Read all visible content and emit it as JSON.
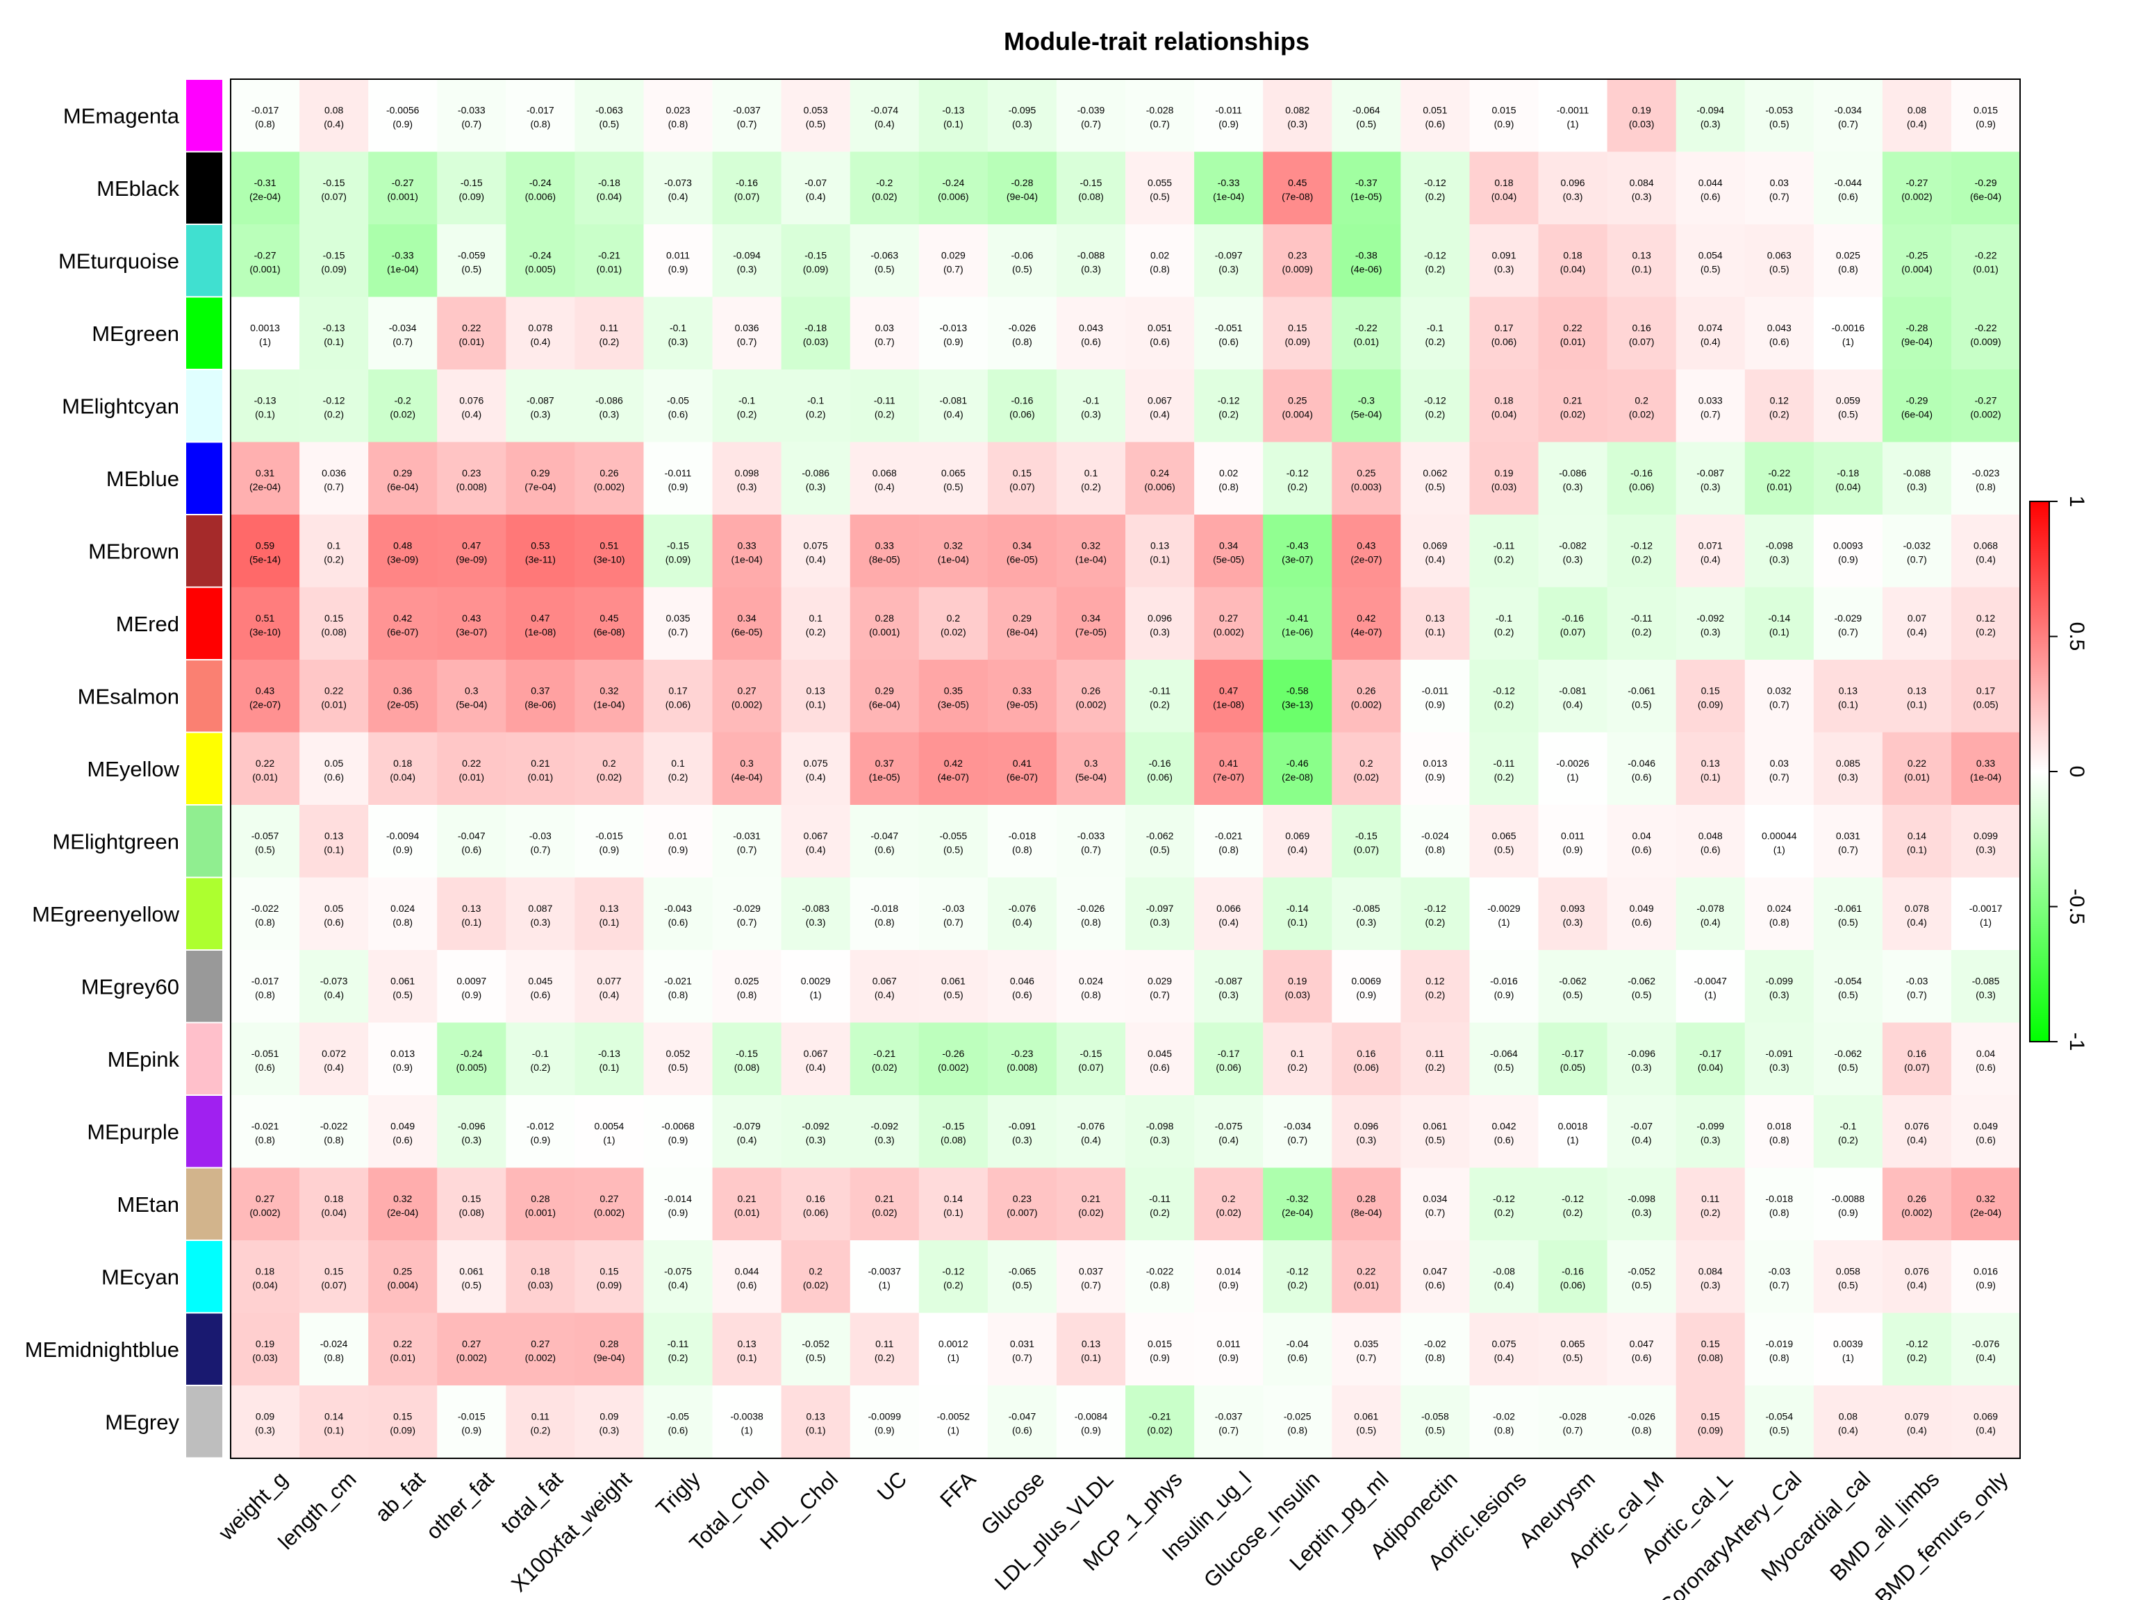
{
  "chart_data": {
    "type": "heatmap",
    "title": "Module-trait relationships",
    "color_scale": {
      "low": "#00ff00",
      "mid": "#ffffff",
      "high": "#ff0000",
      "ticks": [
        "1",
        "0.5",
        "0",
        "-0.5",
        "-1"
      ],
      "tick_values": [
        1,
        0.5,
        0,
        -0.5,
        -1
      ],
      "range": [
        -1,
        1
      ]
    },
    "rows": [
      "MEmagenta",
      "MEblack",
      "MEturquoise",
      "MEgreen",
      "MElightcyan",
      "MEblue",
      "MEbrown",
      "MEred",
      "MEsalmon",
      "MEyellow",
      "MElightgreen",
      "MEgreenyellow",
      "MEgrey60",
      "MEpink",
      "MEpurple",
      "MEtan",
      "MEcyan",
      "MEmidnightblue",
      "MEgrey"
    ],
    "row_colors": [
      "#ff00ff",
      "#000000",
      "#40e0d0",
      "#00ff00",
      "#e0ffff",
      "#0000ff",
      "#a52a2a",
      "#ff0000",
      "#fa8072",
      "#ffff00",
      "#90ee90",
      "#adff2f",
      "#999999",
      "#ffc0cb",
      "#a020f0",
      "#d2b48c",
      "#00ffff",
      "#191970",
      "#bebebe"
    ],
    "columns": [
      "weight_g",
      "length_cm",
      "ab_fat",
      "other_fat",
      "total_fat",
      "X100xfat_weight",
      "Trigly",
      "Total_Chol",
      "HDL_Chol",
      "UC",
      "FFA",
      "Glucose",
      "LDL_plus_VLDL",
      "MCP_1_phys",
      "Insulin_ug_l",
      "Glucose_Insulin",
      "Leptin_pg_ml",
      "Adiponectin",
      "Aortic.lesions",
      "Aneurysm",
      "Aortic_cal_M",
      "Aortic_cal_L",
      "CoronaryArtery_Cal",
      "Myocardial_cal",
      "BMD_all_limbs",
      "BMD_femurs_only"
    ],
    "values": [
      [
        "-0.017",
        "0.08",
        "-0.0056",
        "-0.033",
        "-0.017",
        "-0.063",
        "0.023",
        "-0.037",
        "0.053",
        "-0.074",
        "-0.13",
        "-0.095",
        "-0.039",
        "-0.028",
        "-0.011",
        "0.082",
        "-0.064",
        "0.051",
        "0.015",
        "-0.0011",
        "0.19",
        "-0.094",
        "-0.053",
        "-0.034",
        "0.08",
        "0.015"
      ],
      [
        "-0.31",
        "-0.15",
        "-0.27",
        "-0.15",
        "-0.24",
        "-0.18",
        "-0.073",
        "-0.16",
        "-0.07",
        "-0.2",
        "-0.24",
        "-0.28",
        "-0.15",
        "0.055",
        "-0.33",
        "0.45",
        "-0.37",
        "-0.12",
        "0.18",
        "0.096",
        "0.084",
        "0.044",
        "0.03",
        "-0.044",
        "-0.27",
        "-0.29"
      ],
      [
        "-0.27",
        "-0.15",
        "-0.33",
        "-0.059",
        "-0.24",
        "-0.21",
        "0.011",
        "-0.094",
        "-0.15",
        "-0.063",
        "0.029",
        "-0.06",
        "-0.088",
        "0.02",
        "-0.097",
        "0.23",
        "-0.38",
        "-0.12",
        "0.091",
        "0.18",
        "0.13",
        "0.054",
        "0.063",
        "0.025",
        "-0.25",
        "-0.22"
      ],
      [
        "0.0013",
        "-0.13",
        "-0.034",
        "0.22",
        "0.078",
        "0.11",
        "-0.1",
        "0.036",
        "-0.18",
        "0.03",
        "-0.013",
        "-0.026",
        "0.043",
        "0.051",
        "-0.051",
        "0.15",
        "-0.22",
        "-0.1",
        "0.17",
        "0.22",
        "0.16",
        "0.074",
        "0.043",
        "-0.0016",
        "-0.28",
        "-0.22"
      ],
      [
        "-0.13",
        "-0.12",
        "-0.2",
        "0.076",
        "-0.087",
        "-0.086",
        "-0.05",
        "-0.1",
        "-0.1",
        "-0.11",
        "-0.081",
        "-0.16",
        "-0.1",
        "0.067",
        "-0.12",
        "0.25",
        "-0.3",
        "-0.12",
        "0.18",
        "0.21",
        "0.2",
        "0.033",
        "0.12",
        "0.059",
        "-0.29",
        "-0.27"
      ],
      [
        "0.31",
        "0.036",
        "0.29",
        "0.23",
        "0.29",
        "0.26",
        "-0.011",
        "0.098",
        "-0.086",
        "0.068",
        "0.065",
        "0.15",
        "0.1",
        "0.24",
        "0.02",
        "-0.12",
        "0.25",
        "0.062",
        "0.19",
        "-0.086",
        "-0.16",
        "-0.087",
        "-0.22",
        "-0.18",
        "-0.088",
        "-0.023"
      ],
      [
        "0.59",
        "0.1",
        "0.48",
        "0.47",
        "0.53",
        "0.51",
        "-0.15",
        "0.33",
        "0.075",
        "0.33",
        "0.32",
        "0.34",
        "0.32",
        "0.13",
        "0.34",
        "-0.43",
        "0.43",
        "0.069",
        "-0.11",
        "-0.082",
        "-0.12",
        "0.071",
        "-0.098",
        "0.0093",
        "-0.032",
        "0.068"
      ],
      [
        "0.51",
        "0.15",
        "0.42",
        "0.43",
        "0.47",
        "0.45",
        "0.035",
        "0.34",
        "0.1",
        "0.28",
        "0.2",
        "0.29",
        "0.34",
        "0.096",
        "0.27",
        "-0.41",
        "0.42",
        "0.13",
        "-0.1",
        "-0.16",
        "-0.11",
        "-0.092",
        "-0.14",
        "-0.029",
        "0.07",
        "0.12"
      ],
      [
        "0.43",
        "0.22",
        "0.36",
        "0.3",
        "0.37",
        "0.32",
        "0.17",
        "0.27",
        "0.13",
        "0.29",
        "0.35",
        "0.33",
        "0.26",
        "-0.11",
        "0.47",
        "-0.58",
        "0.26",
        "-0.011",
        "-0.12",
        "-0.081",
        "-0.061",
        "0.15",
        "0.032",
        "0.13",
        "0.13",
        "0.17"
      ],
      [
        "0.22",
        "0.05",
        "0.18",
        "0.22",
        "0.21",
        "0.2",
        "0.1",
        "0.3",
        "0.075",
        "0.37",
        "0.42",
        "0.41",
        "0.3",
        "-0.16",
        "0.41",
        "-0.46",
        "0.2",
        "0.013",
        "-0.11",
        "-0.0026",
        "-0.046",
        "0.13",
        "0.03",
        "0.085",
        "0.22",
        "0.33"
      ],
      [
        "-0.057",
        "0.13",
        "-0.0094",
        "-0.047",
        "-0.03",
        "-0.015",
        "0.01",
        "-0.031",
        "0.067",
        "-0.047",
        "-0.055",
        "-0.018",
        "-0.033",
        "-0.062",
        "-0.021",
        "0.069",
        "-0.15",
        "-0.024",
        "0.065",
        "0.011",
        "0.04",
        "0.048",
        "0.00044",
        "0.031",
        "0.14",
        "0.099"
      ],
      [
        "-0.022",
        "0.05",
        "0.024",
        "0.13",
        "0.087",
        "0.13",
        "-0.043",
        "-0.029",
        "-0.083",
        "-0.018",
        "-0.03",
        "-0.076",
        "-0.026",
        "-0.097",
        "0.066",
        "-0.14",
        "-0.085",
        "-0.12",
        "-0.0029",
        "0.093",
        "0.049",
        "-0.078",
        "0.024",
        "-0.061",
        "0.078",
        "-0.0017"
      ],
      [
        "-0.017",
        "-0.073",
        "0.061",
        "0.0097",
        "0.045",
        "0.077",
        "-0.021",
        "0.025",
        "0.0029",
        "0.067",
        "0.061",
        "0.046",
        "0.024",
        "0.029",
        "-0.087",
        "0.19",
        "0.0069",
        "0.12",
        "-0.016",
        "-0.062",
        "-0.062",
        "-0.0047",
        "-0.099",
        "-0.054",
        "-0.03",
        "-0.085"
      ],
      [
        "-0.051",
        "0.072",
        "0.013",
        "-0.24",
        "-0.1",
        "-0.13",
        "0.052",
        "-0.15",
        "0.067",
        "-0.21",
        "-0.26",
        "-0.23",
        "-0.15",
        "0.045",
        "-0.17",
        "0.1",
        "0.16",
        "0.11",
        "-0.064",
        "-0.17",
        "-0.096",
        "-0.17",
        "-0.091",
        "-0.062",
        "0.16",
        "0.04"
      ],
      [
        "-0.021",
        "-0.022",
        "0.049",
        "-0.096",
        "-0.012",
        "0.0054",
        "-0.0068",
        "-0.079",
        "-0.092",
        "-0.092",
        "-0.15",
        "-0.091",
        "-0.076",
        "-0.098",
        "-0.075",
        "-0.034",
        "0.096",
        "0.061",
        "0.042",
        "0.0018",
        "-0.07",
        "-0.099",
        "0.018",
        "-0.1",
        "0.076",
        "0.049"
      ],
      [
        "0.27",
        "0.18",
        "0.32",
        "0.15",
        "0.28",
        "0.27",
        "-0.014",
        "0.21",
        "0.16",
        "0.21",
        "0.14",
        "0.23",
        "0.21",
        "-0.11",
        "0.2",
        "-0.32",
        "0.28",
        "0.034",
        "-0.12",
        "-0.12",
        "-0.098",
        "0.11",
        "-0.018",
        "-0.0088",
        "0.26",
        "0.32"
      ],
      [
        "0.18",
        "0.15",
        "0.25",
        "0.061",
        "0.18",
        "0.15",
        "-0.075",
        "0.044",
        "0.2",
        "-0.0037",
        "-0.12",
        "-0.065",
        "0.037",
        "-0.022",
        "0.014",
        "-0.12",
        "0.22",
        "0.047",
        "-0.08",
        "-0.16",
        "-0.052",
        "0.084",
        "-0.03",
        "0.058",
        "0.076",
        "0.016"
      ],
      [
        "0.19",
        "-0.024",
        "0.22",
        "0.27",
        "0.27",
        "0.28",
        "-0.11",
        "0.13",
        "-0.052",
        "0.11",
        "0.0012",
        "0.031",
        "0.13",
        "0.015",
        "0.011",
        "-0.04",
        "0.035",
        "-0.02",
        "0.075",
        "0.065",
        "0.047",
        "0.15",
        "-0.019",
        "0.0039",
        "-0.12",
        "-0.076"
      ],
      [
        "0.09",
        "0.14",
        "0.15",
        "-0.015",
        "0.11",
        "0.09",
        "-0.05",
        "-0.0038",
        "0.13",
        "-0.0099",
        "-0.0052",
        "-0.047",
        "-0.0084",
        "-0.21",
        "-0.037",
        "-0.025",
        "0.061",
        "-0.058",
        "-0.02",
        "-0.028",
        "-0.026",
        "0.15",
        "-0.054",
        "0.08",
        "0.079",
        "0.069"
      ]
    ],
    "pvalues": [
      [
        "(0.8)",
        "(0.4)",
        "(0.9)",
        "(0.7)",
        "(0.8)",
        "(0.5)",
        "(0.8)",
        "(0.7)",
        "(0.5)",
        "(0.4)",
        "(0.1)",
        "(0.3)",
        "(0.7)",
        "(0.7)",
        "(0.9)",
        "(0.3)",
        "(0.5)",
        "(0.6)",
        "(0.9)",
        "(1)",
        "(0.03)",
        "(0.3)",
        "(0.5)",
        "(0.7)",
        "(0.4)",
        "(0.9)"
      ],
      [
        "(2e-04)",
        "(0.07)",
        "(0.001)",
        "(0.09)",
        "(0.006)",
        "(0.04)",
        "(0.4)",
        "(0.07)",
        "(0.4)",
        "(0.02)",
        "(0.006)",
        "(9e-04)",
        "(0.08)",
        "(0.5)",
        "(1e-04)",
        "(7e-08)",
        "(1e-05)",
        "(0.2)",
        "(0.04)",
        "(0.3)",
        "(0.3)",
        "(0.6)",
        "(0.7)",
        "(0.6)",
        "(0.002)",
        "(6e-04)"
      ],
      [
        "(0.001)",
        "(0.09)",
        "(1e-04)",
        "(0.5)",
        "(0.005)",
        "(0.01)",
        "(0.9)",
        "(0.3)",
        "(0.09)",
        "(0.5)",
        "(0.7)",
        "(0.5)",
        "(0.3)",
        "(0.8)",
        "(0.3)",
        "(0.009)",
        "(4e-06)",
        "(0.2)",
        "(0.3)",
        "(0.04)",
        "(0.1)",
        "(0.5)",
        "(0.5)",
        "(0.8)",
        "(0.004)",
        "(0.01)"
      ],
      [
        "(1)",
        "(0.1)",
        "(0.7)",
        "(0.01)",
        "(0.4)",
        "(0.2)",
        "(0.3)",
        "(0.7)",
        "(0.03)",
        "(0.7)",
        "(0.9)",
        "(0.8)",
        "(0.6)",
        "(0.6)",
        "(0.6)",
        "(0.09)",
        "(0.01)",
        "(0.2)",
        "(0.06)",
        "(0.01)",
        "(0.07)",
        "(0.4)",
        "(0.6)",
        "(1)",
        "(9e-04)",
        "(0.009)"
      ],
      [
        "(0.1)",
        "(0.2)",
        "(0.02)",
        "(0.4)",
        "(0.3)",
        "(0.3)",
        "(0.6)",
        "(0.2)",
        "(0.2)",
        "(0.2)",
        "(0.4)",
        "(0.06)",
        "(0.3)",
        "(0.4)",
        "(0.2)",
        "(0.004)",
        "(5e-04)",
        "(0.2)",
        "(0.04)",
        "(0.02)",
        "(0.02)",
        "(0.7)",
        "(0.2)",
        "(0.5)",
        "(6e-04)",
        "(0.002)"
      ],
      [
        "(2e-04)",
        "(0.7)",
        "(6e-04)",
        "(0.008)",
        "(7e-04)",
        "(0.002)",
        "(0.9)",
        "(0.3)",
        "(0.3)",
        "(0.4)",
        "(0.5)",
        "(0.07)",
        "(0.2)",
        "(0.006)",
        "(0.8)",
        "(0.2)",
        "(0.003)",
        "(0.5)",
        "(0.03)",
        "(0.3)",
        "(0.06)",
        "(0.3)",
        "(0.01)",
        "(0.04)",
        "(0.3)",
        "(0.8)"
      ],
      [
        "(5e-14)",
        "(0.2)",
        "(3e-09)",
        "(9e-09)",
        "(3e-11)",
        "(3e-10)",
        "(0.09)",
        "(1e-04)",
        "(0.4)",
        "(8e-05)",
        "(1e-04)",
        "(6e-05)",
        "(1e-04)",
        "(0.1)",
        "(5e-05)",
        "(3e-07)",
        "(2e-07)",
        "(0.4)",
        "(0.2)",
        "(0.3)",
        "(0.2)",
        "(0.4)",
        "(0.3)",
        "(0.9)",
        "(0.7)",
        "(0.4)"
      ],
      [
        "(3e-10)",
        "(0.08)",
        "(6e-07)",
        "(3e-07)",
        "(1e-08)",
        "(6e-08)",
        "(0.7)",
        "(6e-05)",
        "(0.2)",
        "(0.001)",
        "(0.02)",
        "(8e-04)",
        "(7e-05)",
        "(0.3)",
        "(0.002)",
        "(1e-06)",
        "(4e-07)",
        "(0.1)",
        "(0.2)",
        "(0.07)",
        "(0.2)",
        "(0.3)",
        "(0.1)",
        "(0.7)",
        "(0.4)",
        "(0.2)"
      ],
      [
        "(2e-07)",
        "(0.01)",
        "(2e-05)",
        "(5e-04)",
        "(8e-06)",
        "(1e-04)",
        "(0.06)",
        "(0.002)",
        "(0.1)",
        "(6e-04)",
        "(3e-05)",
        "(9e-05)",
        "(0.002)",
        "(0.2)",
        "(1e-08)",
        "(3e-13)",
        "(0.002)",
        "(0.9)",
        "(0.2)",
        "(0.4)",
        "(0.5)",
        "(0.09)",
        "(0.7)",
        "(0.1)",
        "(0.1)",
        "(0.05)"
      ],
      [
        "(0.01)",
        "(0.6)",
        "(0.04)",
        "(0.01)",
        "(0.01)",
        "(0.02)",
        "(0.2)",
        "(4e-04)",
        "(0.4)",
        "(1e-05)",
        "(4e-07)",
        "(6e-07)",
        "(5e-04)",
        "(0.06)",
        "(7e-07)",
        "(2e-08)",
        "(0.02)",
        "(0.9)",
        "(0.2)",
        "(1)",
        "(0.6)",
        "(0.1)",
        "(0.7)",
        "(0.3)",
        "(0.01)",
        "(1e-04)"
      ],
      [
        "(0.5)",
        "(0.1)",
        "(0.9)",
        "(0.6)",
        "(0.7)",
        "(0.9)",
        "(0.9)",
        "(0.7)",
        "(0.4)",
        "(0.6)",
        "(0.5)",
        "(0.8)",
        "(0.7)",
        "(0.5)",
        "(0.8)",
        "(0.4)",
        "(0.07)",
        "(0.8)",
        "(0.5)",
        "(0.9)",
        "(0.6)",
        "(0.6)",
        "(1)",
        "(0.7)",
        "(0.1)",
        "(0.3)"
      ],
      [
        "(0.8)",
        "(0.6)",
        "(0.8)",
        "(0.1)",
        "(0.3)",
        "(0.1)",
        "(0.6)",
        "(0.7)",
        "(0.3)",
        "(0.8)",
        "(0.7)",
        "(0.4)",
        "(0.8)",
        "(0.3)",
        "(0.4)",
        "(0.1)",
        "(0.3)",
        "(0.2)",
        "(1)",
        "(0.3)",
        "(0.6)",
        "(0.4)",
        "(0.8)",
        "(0.5)",
        "(0.4)",
        "(1)"
      ],
      [
        "(0.8)",
        "(0.4)",
        "(0.5)",
        "(0.9)",
        "(0.6)",
        "(0.4)",
        "(0.8)",
        "(0.8)",
        "(1)",
        "(0.4)",
        "(0.5)",
        "(0.6)",
        "(0.8)",
        "(0.7)",
        "(0.3)",
        "(0.03)",
        "(0.9)",
        "(0.2)",
        "(0.9)",
        "(0.5)",
        "(0.5)",
        "(1)",
        "(0.3)",
        "(0.5)",
        "(0.7)",
        "(0.3)"
      ],
      [
        "(0.6)",
        "(0.4)",
        "(0.9)",
        "(0.005)",
        "(0.2)",
        "(0.1)",
        "(0.5)",
        "(0.08)",
        "(0.4)",
        "(0.02)",
        "(0.002)",
        "(0.008)",
        "(0.07)",
        "(0.6)",
        "(0.06)",
        "(0.2)",
        "(0.06)",
        "(0.2)",
        "(0.5)",
        "(0.05)",
        "(0.3)",
        "(0.04)",
        "(0.3)",
        "(0.5)",
        "(0.07)",
        "(0.6)"
      ],
      [
        "(0.8)",
        "(0.8)",
        "(0.6)",
        "(0.3)",
        "(0.9)",
        "(1)",
        "(0.9)",
        "(0.4)",
        "(0.3)",
        "(0.3)",
        "(0.08)",
        "(0.3)",
        "(0.4)",
        "(0.3)",
        "(0.4)",
        "(0.7)",
        "(0.3)",
        "(0.5)",
        "(0.6)",
        "(1)",
        "(0.4)",
        "(0.3)",
        "(0.8)",
        "(0.2)",
        "(0.4)",
        "(0.6)"
      ],
      [
        "(0.002)",
        "(0.04)",
        "(2e-04)",
        "(0.08)",
        "(0.001)",
        "(0.002)",
        "(0.9)",
        "(0.01)",
        "(0.06)",
        "(0.02)",
        "(0.1)",
        "(0.007)",
        "(0.02)",
        "(0.2)",
        "(0.02)",
        "(2e-04)",
        "(8e-04)",
        "(0.7)",
        "(0.2)",
        "(0.2)",
        "(0.3)",
        "(0.2)",
        "(0.8)",
        "(0.9)",
        "(0.002)",
        "(2e-04)"
      ],
      [
        "(0.04)",
        "(0.07)",
        "(0.004)",
        "(0.5)",
        "(0.03)",
        "(0.09)",
        "(0.4)",
        "(0.6)",
        "(0.02)",
        "(1)",
        "(0.2)",
        "(0.5)",
        "(0.7)",
        "(0.8)",
        "(0.9)",
        "(0.2)",
        "(0.01)",
        "(0.6)",
        "(0.4)",
        "(0.06)",
        "(0.5)",
        "(0.3)",
        "(0.7)",
        "(0.5)",
        "(0.4)",
        "(0.9)"
      ],
      [
        "(0.03)",
        "(0.8)",
        "(0.01)",
        "(0.002)",
        "(0.002)",
        "(9e-04)",
        "(0.2)",
        "(0.1)",
        "(0.5)",
        "(0.2)",
        "(1)",
        "(0.7)",
        "(0.1)",
        "(0.9)",
        "(0.9)",
        "(0.6)",
        "(0.7)",
        "(0.8)",
        "(0.4)",
        "(0.5)",
        "(0.6)",
        "(0.08)",
        "(0.8)",
        "(1)",
        "(0.2)",
        "(0.4)"
      ],
      [
        "(0.3)",
        "(0.1)",
        "(0.09)",
        "(0.9)",
        "(0.2)",
        "(0.3)",
        "(0.6)",
        "(1)",
        "(0.1)",
        "(0.9)",
        "(1)",
        "(0.6)",
        "(0.9)",
        "(0.02)",
        "(0.7)",
        "(0.8)",
        "(0.5)",
        "(0.5)",
        "(0.8)",
        "(0.7)",
        "(0.8)",
        "(0.09)",
        "(0.5)",
        "(0.4)",
        "(0.4)",
        "(0.4)"
      ]
    ]
  }
}
